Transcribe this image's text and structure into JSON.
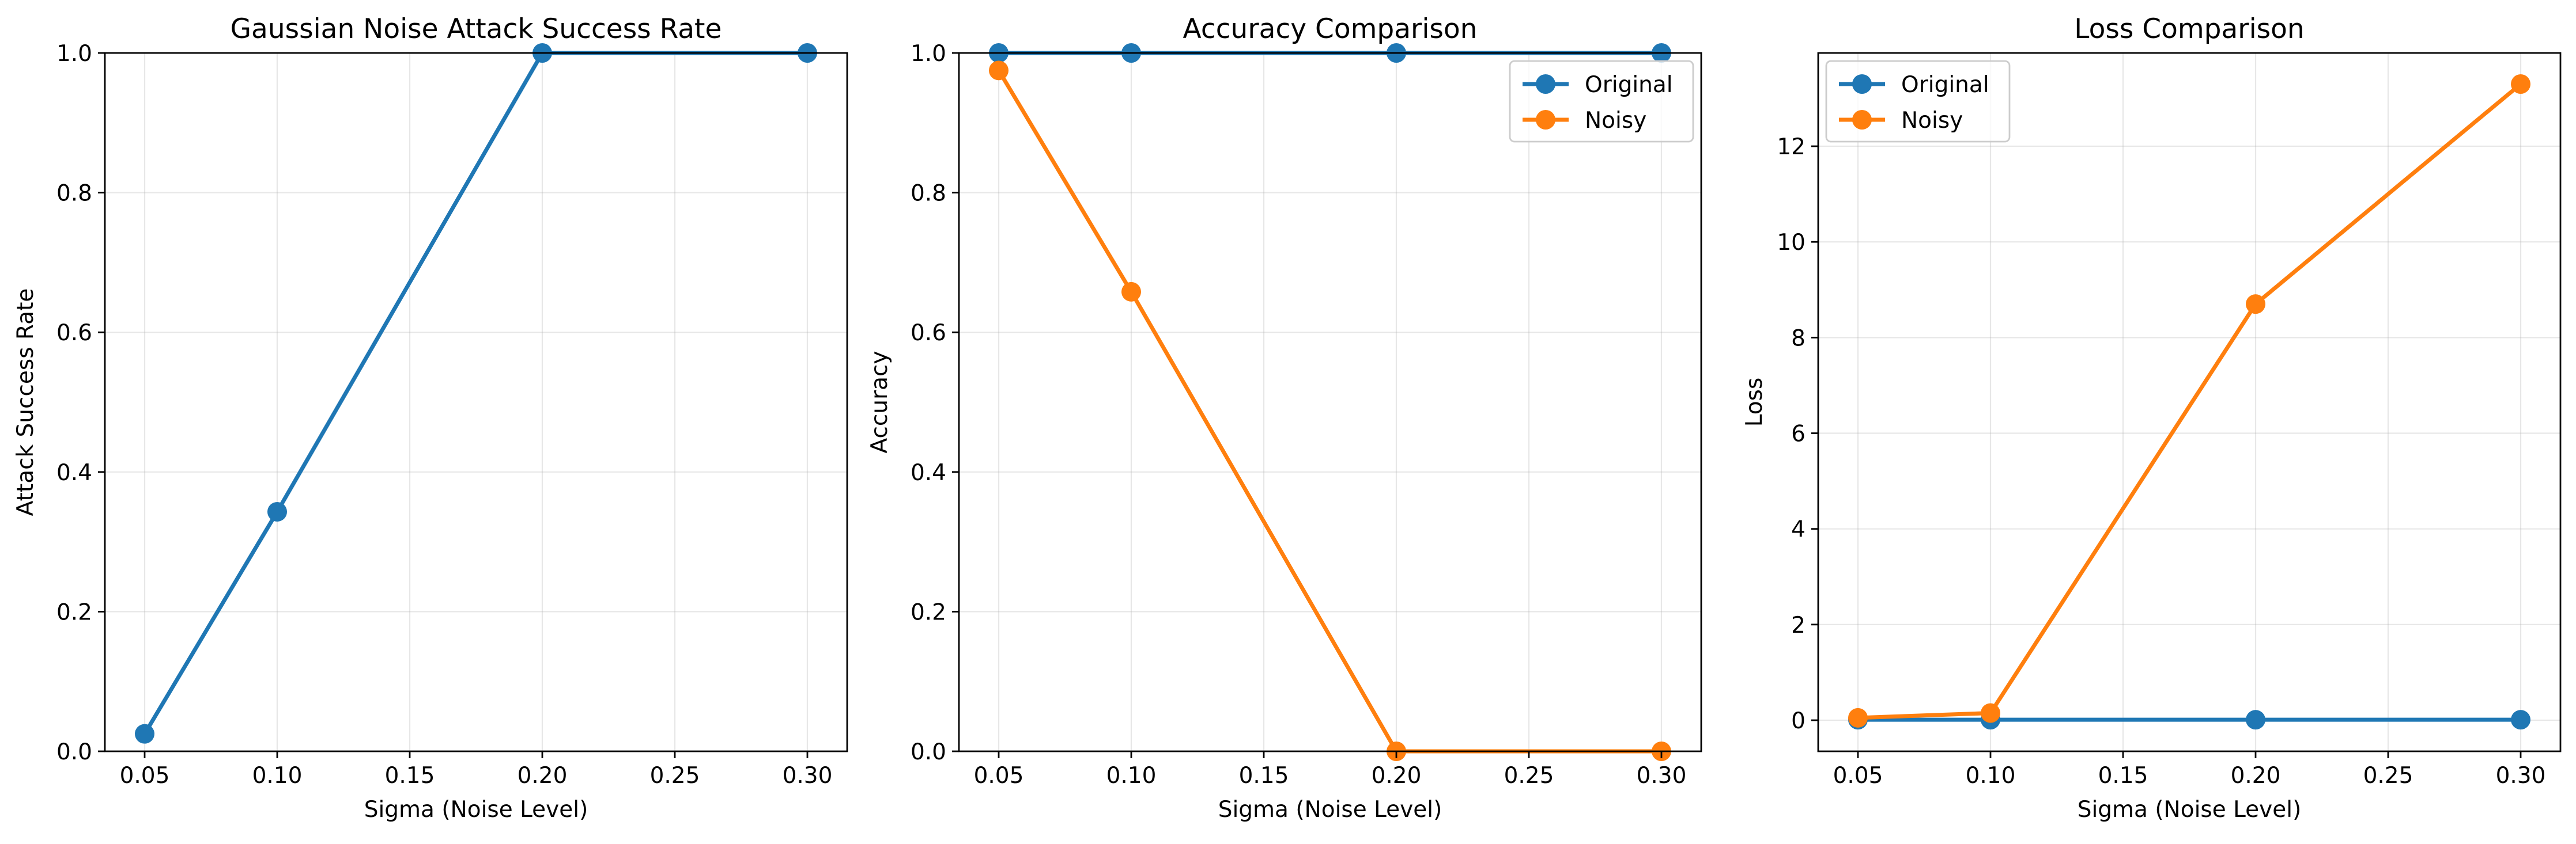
{
  "chart_data": [
    {
      "type": "line",
      "title": "Gaussian Noise Attack Success Rate",
      "xlabel": "Sigma (Noise Level)",
      "ylabel": "Attack Success Rate",
      "x": [
        0.05,
        0.1,
        0.2,
        0.3
      ],
      "xlim": [
        0.035,
        0.315
      ],
      "ylim": [
        0,
        1.0
      ],
      "xticks": [
        0.05,
        0.1,
        0.15,
        0.2,
        0.25,
        0.3
      ],
      "xtick_labels": [
        "0.05",
        "0.10",
        "0.15",
        "0.20",
        "0.25",
        "0.30"
      ],
      "yticks": [
        0,
        0.2,
        0.4,
        0.6,
        0.8,
        1.0
      ],
      "ytick_labels": [
        "0.0",
        "0.2",
        "0.4",
        "0.6",
        "0.8",
        "1.0"
      ],
      "grid": true,
      "legend": null,
      "series": [
        {
          "color": "#1f77b4",
          "values": [
            0.025,
            0.343,
            1.0,
            1.0
          ]
        }
      ]
    },
    {
      "type": "line",
      "title": "Accuracy Comparison",
      "xlabel": "Sigma (Noise Level)",
      "ylabel": "Accuracy",
      "x": [
        0.05,
        0.1,
        0.2,
        0.3
      ],
      "xlim": [
        0.035,
        0.315
      ],
      "ylim": [
        0,
        1.0
      ],
      "xticks": [
        0.05,
        0.1,
        0.15,
        0.2,
        0.25,
        0.3
      ],
      "xtick_labels": [
        "0.05",
        "0.10",
        "0.15",
        "0.20",
        "0.25",
        "0.30"
      ],
      "yticks": [
        0,
        0.2,
        0.4,
        0.6,
        0.8,
        1.0
      ],
      "ytick_labels": [
        "0.0",
        "0.2",
        "0.4",
        "0.6",
        "0.8",
        "1.0"
      ],
      "grid": true,
      "legend": "top-right",
      "series": [
        {
          "name": "Original",
          "color": "#1f77b4",
          "values": [
            1.0,
            1.0,
            1.0,
            1.0
          ]
        },
        {
          "name": "Noisy",
          "color": "#ff7f0e",
          "values": [
            0.975,
            0.658,
            0.0,
            0.0
          ]
        }
      ]
    },
    {
      "type": "line",
      "title": "Loss Comparison",
      "xlabel": "Sigma (Noise Level)",
      "ylabel": "Loss",
      "x": [
        0.05,
        0.1,
        0.2,
        0.3
      ],
      "xlim": [
        0.035,
        0.315
      ],
      "ylim": [
        -0.65,
        13.95
      ],
      "xticks": [
        0.05,
        0.1,
        0.15,
        0.2,
        0.25,
        0.3
      ],
      "xtick_labels": [
        "0.05",
        "0.10",
        "0.15",
        "0.20",
        "0.25",
        "0.30"
      ],
      "yticks": [
        0,
        2,
        4,
        6,
        8,
        10,
        12
      ],
      "ytick_labels": [
        "0",
        "2",
        "4",
        "6",
        "8",
        "10",
        "12"
      ],
      "grid": true,
      "legend": "top-left",
      "series": [
        {
          "name": "Original",
          "color": "#1f77b4",
          "values": [
            0.01,
            0.01,
            0.01,
            0.01
          ]
        },
        {
          "name": "Noisy",
          "color": "#ff7f0e",
          "values": [
            0.05,
            0.15,
            8.7,
            13.3
          ]
        }
      ]
    }
  ]
}
